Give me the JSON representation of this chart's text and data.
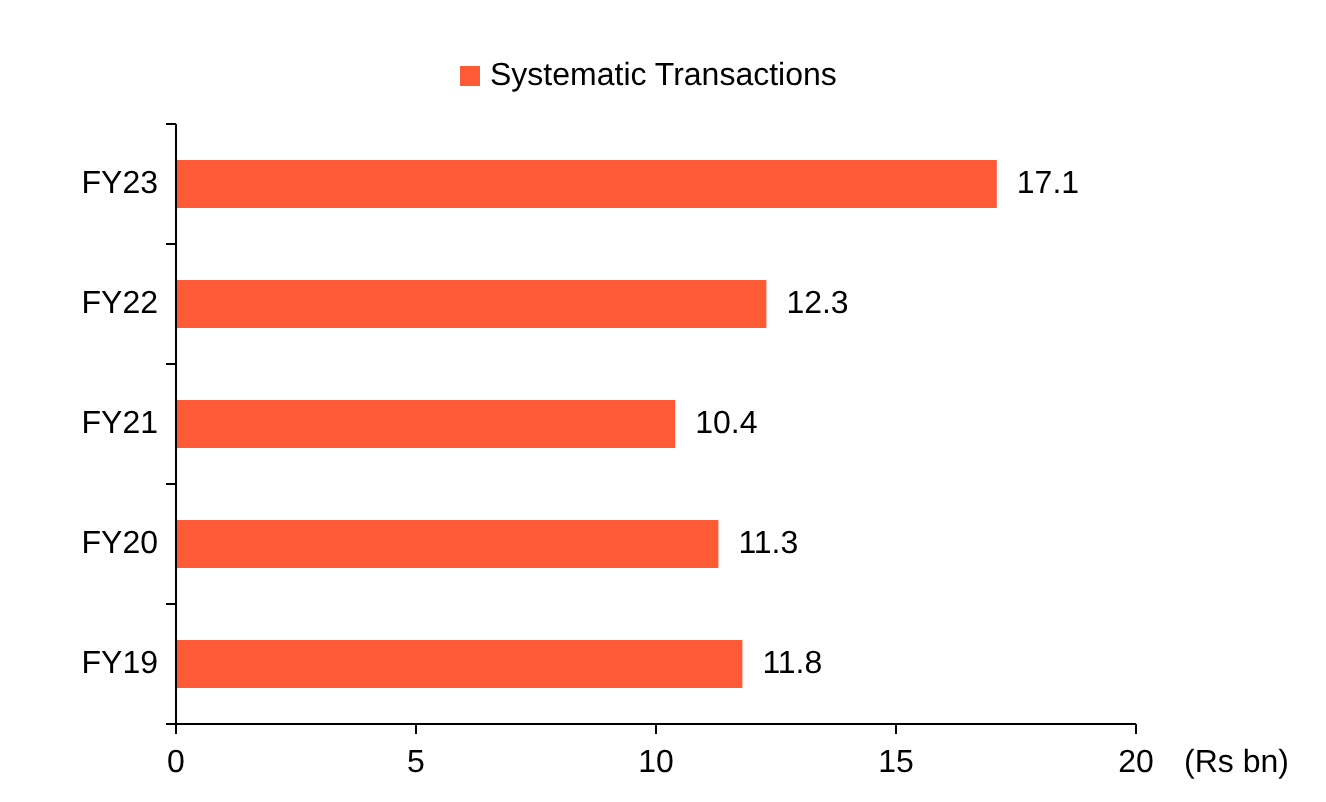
{
  "chart_data": {
    "type": "bar",
    "orientation": "horizontal",
    "categories": [
      "FY23",
      "FY22",
      "FY21",
      "FY20",
      "FY19"
    ],
    "series": [
      {
        "name": "Systematic Transactions",
        "color": "#ff5a36",
        "values": [
          17.1,
          12.3,
          10.4,
          11.3,
          11.8
        ]
      }
    ],
    "xlim": [
      0,
      20
    ],
    "xticks": [
      0,
      5,
      10,
      15,
      20
    ],
    "xlabel": "(Rs bn)",
    "data_labels": true,
    "legend": "top",
    "grid": false
  }
}
